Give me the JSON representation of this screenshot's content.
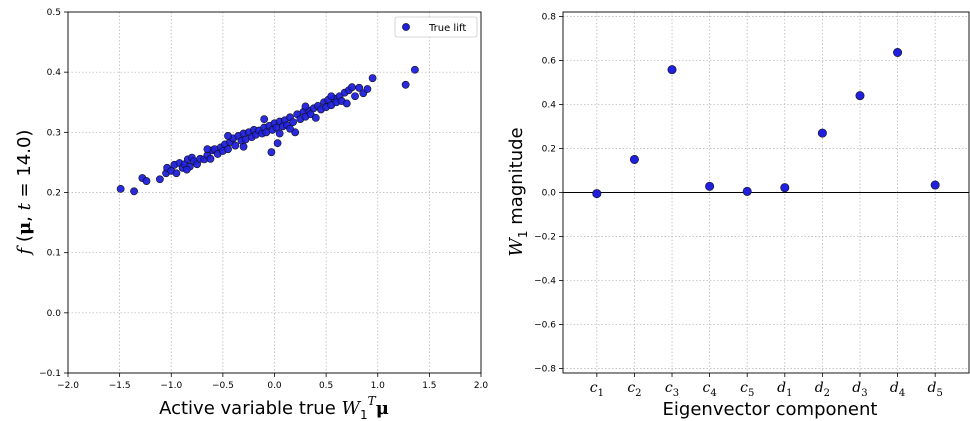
{
  "chart_data": [
    {
      "type": "scatter",
      "xlabel": "Active variable true W₁ᵀμ",
      "ylabel": "f (μ, t = 14.0)",
      "xlim": [
        -2.0,
        2.0
      ],
      "ylim": [
        -0.1,
        0.5
      ],
      "xticks": [
        "−2.0",
        "−1.5",
        "−1.0",
        "−0.5",
        "0.0",
        "0.5",
        "1.0",
        "1.5",
        "2.0"
      ],
      "yticks": [
        "−0.1",
        "0.0",
        "0.1",
        "0.2",
        "0.3",
        "0.4",
        "0.5"
      ],
      "grid": true,
      "legend_position": "top-right",
      "marker_color": "#1f1fdd",
      "series": [
        {
          "name": "True lift",
          "points": [
            [
              -1.49,
              0.206
            ],
            [
              -1.36,
              0.202
            ],
            [
              -1.28,
              0.224
            ],
            [
              -1.24,
              0.219
            ],
            [
              -1.11,
              0.222
            ],
            [
              -1.05,
              0.232
            ],
            [
              -1.04,
              0.241
            ],
            [
              -1.0,
              0.236
            ],
            [
              -0.97,
              0.246
            ],
            [
              -0.95,
              0.232
            ],
            [
              -0.92,
              0.249
            ],
            [
              -0.89,
              0.241
            ],
            [
              -0.87,
              0.247
            ],
            [
              -0.84,
              0.255
            ],
            [
              -0.82,
              0.243
            ],
            [
              -0.8,
              0.258
            ],
            [
              -0.78,
              0.252
            ],
            [
              -0.75,
              0.247
            ],
            [
              -0.72,
              0.256
            ],
            [
              -0.68,
              0.255
            ],
            [
              -0.65,
              0.262
            ],
            [
              -0.62,
              0.256
            ],
            [
              -0.6,
              0.27
            ],
            [
              -0.58,
              0.272
            ],
            [
              -0.55,
              0.264
            ],
            [
              -0.52,
              0.275
            ],
            [
              -0.5,
              0.269
            ],
            [
              -0.48,
              0.28
            ],
            [
              -0.45,
              0.272
            ],
            [
              -0.43,
              0.284
            ],
            [
              -0.4,
              0.29
            ],
            [
              -0.38,
              0.278
            ],
            [
              -0.35,
              0.294
            ],
            [
              -0.32,
              0.286
            ],
            [
              -0.3,
              0.298
            ],
            [
              -0.28,
              0.288
            ],
            [
              -0.25,
              0.3
            ],
            [
              -0.22,
              0.292
            ],
            [
              -0.2,
              0.304
            ],
            [
              -0.18,
              0.296
            ],
            [
              -0.15,
              0.303
            ],
            [
              -0.12,
              0.298
            ],
            [
              -0.1,
              0.308
            ],
            [
              -0.08,
              0.3
            ],
            [
              -0.05,
              0.311
            ],
            [
              -0.03,
              0.267
            ],
            [
              -0.02,
              0.304
            ],
            [
              0.0,
              0.315
            ],
            [
              0.02,
              0.308
            ],
            [
              0.03,
              0.282
            ],
            [
              0.05,
              0.318
            ],
            [
              0.08,
              0.31
            ],
            [
              0.1,
              0.32
            ],
            [
              0.12,
              0.312
            ],
            [
              0.15,
              0.325
            ],
            [
              0.18,
              0.317
            ],
            [
              0.2,
              0.3
            ],
            [
              0.22,
              0.33
            ],
            [
              0.25,
              0.322
            ],
            [
              0.28,
              0.334
            ],
            [
              0.3,
              0.326
            ],
            [
              0.33,
              0.336
            ],
            [
              0.35,
              0.33
            ],
            [
              0.38,
              0.34
            ],
            [
              0.4,
              0.324
            ],
            [
              0.42,
              0.344
            ],
            [
              0.45,
              0.338
            ],
            [
              0.48,
              0.35
            ],
            [
              0.5,
              0.342
            ],
            [
              0.52,
              0.354
            ],
            [
              0.55,
              0.345
            ],
            [
              0.58,
              0.356
            ],
            [
              0.6,
              0.35
            ],
            [
              0.63,
              0.36
            ],
            [
              0.65,
              0.352
            ],
            [
              0.68,
              0.366
            ],
            [
              0.7,
              0.348
            ],
            [
              0.72,
              0.37
            ],
            [
              0.75,
              0.375
            ],
            [
              0.78,
              0.36
            ],
            [
              0.82,
              0.374
            ],
            [
              0.86,
              0.365
            ],
            [
              0.9,
              0.372
            ],
            [
              0.95,
              0.39
            ],
            [
              1.27,
              0.379
            ],
            [
              1.36,
              0.404
            ],
            [
              -0.65,
              0.272
            ],
            [
              -0.45,
              0.294
            ],
            [
              -0.1,
              0.322
            ],
            [
              0.05,
              0.298
            ],
            [
              0.3,
              0.343
            ],
            [
              0.55,
              0.36
            ],
            [
              -0.85,
              0.238
            ],
            [
              -0.3,
              0.276
            ],
            [
              0.15,
              0.306
            ]
          ]
        }
      ]
    },
    {
      "type": "scatter",
      "xlabel": "Eigenvector component",
      "ylabel": "W₁ magnitude",
      "ylim": [
        -0.82,
        0.82
      ],
      "yticks": [
        "−0.8",
        "−0.6",
        "−0.4",
        "−0.2",
        "0.0",
        "0.2",
        "0.4",
        "0.6",
        "0.8"
      ],
      "grid": true,
      "marker_color": "#1f1fdd",
      "categories": [
        {
          "base": "c",
          "sub": "1"
        },
        {
          "base": "c",
          "sub": "2"
        },
        {
          "base": "c",
          "sub": "3"
        },
        {
          "base": "c",
          "sub": "4"
        },
        {
          "base": "c",
          "sub": "5"
        },
        {
          "base": "d",
          "sub": "1"
        },
        {
          "base": "d",
          "sub": "2"
        },
        {
          "base": "d",
          "sub": "3"
        },
        {
          "base": "d",
          "sub": "4"
        },
        {
          "base": "d",
          "sub": "5"
        }
      ],
      "values": [
        -0.005,
        0.15,
        0.558,
        0.028,
        0.005,
        0.022,
        0.27,
        0.44,
        0.636,
        0.034
      ]
    }
  ]
}
